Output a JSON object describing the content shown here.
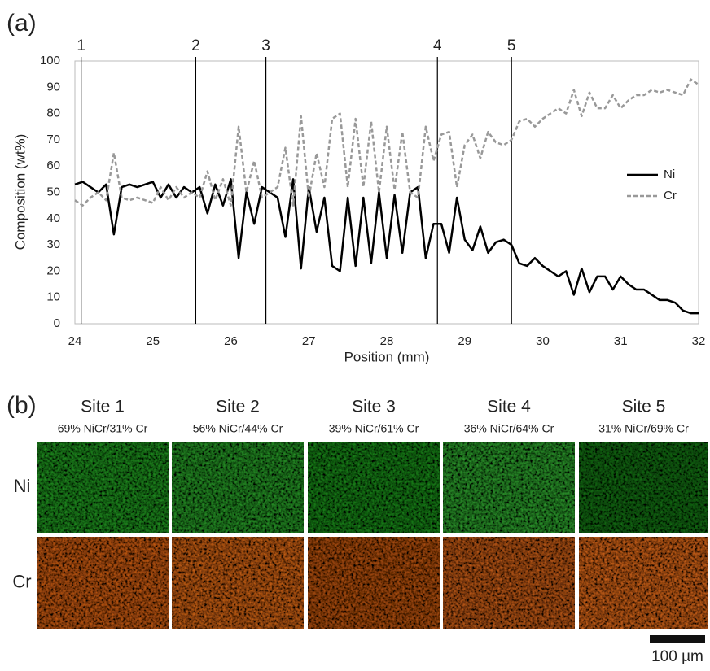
{
  "panel_labels": [
    "(a)",
    "(b)"
  ],
  "chart_data": {
    "type": "line",
    "x_label": "Position (mm)",
    "y_label": "Composition (wt%)",
    "x": [
      24,
      24.1,
      24.2,
      24.3,
      24.4,
      24.5,
      24.6,
      24.7,
      24.8,
      24.9,
      25,
      25.1,
      25.2,
      25.3,
      25.4,
      25.5,
      25.6,
      25.7,
      25.8,
      25.9,
      26,
      26.1,
      26.2,
      26.3,
      26.4,
      26.5,
      26.6,
      26.7,
      26.8,
      26.9,
      27,
      27.1,
      27.2,
      27.3,
      27.4,
      27.5,
      27.6,
      27.7,
      27.8,
      27.9,
      28,
      28.1,
      28.2,
      28.3,
      28.4,
      28.5,
      28.6,
      28.7,
      28.8,
      28.9,
      29,
      29.1,
      29.2,
      29.3,
      29.4,
      29.5,
      29.6,
      29.7,
      29.8,
      29.9,
      30,
      30.1,
      30.2,
      30.3,
      30.4,
      30.5,
      30.6,
      30.7,
      30.8,
      30.9,
      31,
      31.1,
      31.2,
      31.3,
      31.4,
      31.5,
      31.6,
      31.7,
      31.8,
      31.9,
      32
    ],
    "series": [
      {
        "name": "Ni",
        "color": "#000000",
        "dash": false,
        "values": [
          53,
          54,
          52,
          50,
          53,
          34,
          52,
          53,
          52,
          53,
          54,
          48,
          53,
          48,
          52,
          50,
          52,
          42,
          53,
          45,
          55,
          25,
          50,
          38,
          52,
          50,
          48,
          33,
          55,
          21,
          52,
          35,
          48,
          22,
          20,
          48,
          22,
          48,
          23,
          50,
          25,
          49,
          27,
          50,
          52,
          25,
          38,
          38,
          27,
          48,
          32,
          28,
          37,
          27,
          31,
          32,
          30,
          23,
          22,
          25,
          22,
          20,
          18,
          20,
          11,
          21,
          12,
          18,
          18,
          13,
          18,
          15,
          13,
          13,
          11,
          9,
          9,
          8,
          5,
          4,
          4
        ]
      },
      {
        "name": "Cr",
        "color": "#999999",
        "dash": true,
        "values": [
          47,
          45,
          48,
          50,
          47,
          65,
          48,
          47,
          48,
          47,
          46,
          52,
          47,
          52,
          48,
          50,
          48,
          58,
          47,
          55,
          45,
          75,
          50,
          62,
          48,
          50,
          52,
          67,
          45,
          79,
          48,
          65,
          52,
          78,
          80,
          52,
          78,
          52,
          77,
          50,
          75,
          51,
          73,
          50,
          48,
          75,
          62,
          72,
          73,
          52,
          68,
          72,
          63,
          73,
          69,
          68,
          70,
          77,
          78,
          75,
          78,
          80,
          82,
          80,
          89,
          79,
          88,
          82,
          82,
          87,
          82,
          85,
          87,
          87,
          89,
          88,
          89,
          88,
          87,
          93,
          91
        ]
      }
    ],
    "markers": [
      {
        "label": "1",
        "x": 24.08
      },
      {
        "label": "2",
        "x": 25.55
      },
      {
        "label": "3",
        "x": 26.45
      },
      {
        "label": "4",
        "x": 28.65
      },
      {
        "label": "5",
        "x": 29.6
      }
    ],
    "xlim": [
      24,
      32
    ],
    "xticks": [
      24,
      25,
      26,
      27,
      28,
      29,
      30,
      31,
      32
    ],
    "ylim": [
      0,
      100
    ],
    "yticks": [
      0,
      10,
      20,
      30,
      40,
      50,
      60,
      70,
      80,
      90,
      100
    ],
    "grid": false,
    "legend": "right"
  },
  "panel_b": {
    "sites": [
      {
        "title": "Site 1",
        "composition": "69% NiCr/31% Cr"
      },
      {
        "title": "Site 2",
        "composition": "56% NiCr/44% Cr"
      },
      {
        "title": "Site 3",
        "composition": "39% NiCr/61% Cr"
      },
      {
        "title": "Site 4",
        "composition": "36% NiCr/64% Cr"
      },
      {
        "title": "Site 5",
        "composition": "31% NiCr/69% Cr"
      }
    ],
    "rows": [
      "Ni",
      "Cr"
    ],
    "scale_bar": "100 µm"
  }
}
